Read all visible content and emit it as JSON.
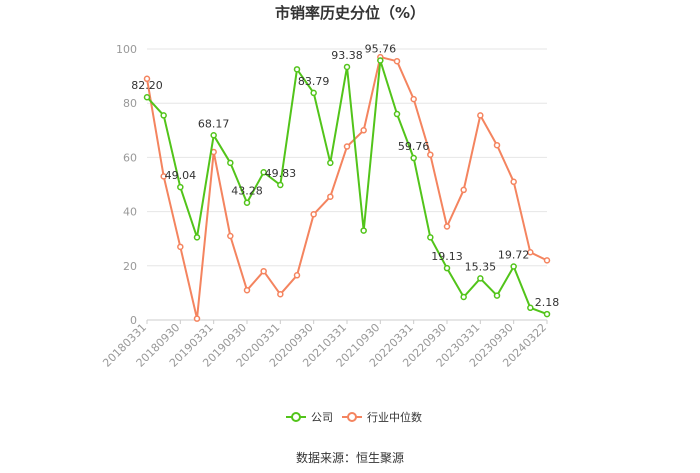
{
  "chart_data": {
    "type": "line",
    "title": "市销率历史分位（%）",
    "x": [
      "20180331",
      "20180630",
      "20180930",
      "20181231",
      "20190331",
      "20190630",
      "20190930",
      "20191231",
      "20200331",
      "20200630",
      "20200930",
      "20201231",
      "20210331",
      "20210630",
      "20210930",
      "20211231",
      "20220331",
      "20220630",
      "20220930",
      "20221231",
      "20230331",
      "20230630",
      "20230930",
      "20231231",
      "20240322"
    ],
    "xtick_labels": [
      "20180331",
      "20180930",
      "20190331",
      "20190930",
      "20200331",
      "20200930",
      "20210331",
      "20210930",
      "20220331",
      "20220930",
      "20230331",
      "20230930",
      "20240322"
    ],
    "ylim": [
      0,
      100
    ],
    "yticks": [
      0,
      20,
      40,
      60,
      80,
      100
    ],
    "grid": true,
    "legend_position": "bottom",
    "series": [
      {
        "name": "公司",
        "color": "#52c41a",
        "values": [
          82.2,
          75.5,
          49.04,
          30.5,
          68.17,
          58.0,
          43.28,
          54.5,
          49.83,
          92.5,
          83.79,
          58.0,
          93.38,
          33.0,
          95.76,
          76.0,
          59.76,
          30.5,
          19.13,
          8.5,
          15.35,
          9.0,
          19.72,
          4.5,
          2.18
        ],
        "data_labels": {
          "0": "82.20",
          "2": "49.04",
          "4": "68.17",
          "6": "43.28",
          "8": "49.83",
          "10": "83.79",
          "12": "93.38",
          "14": "95.76",
          "16": "59.76",
          "18": "19.13",
          "20": "15.35",
          "22": "19.72",
          "24": "2.18"
        }
      },
      {
        "name": "行业中位数",
        "color": "#f4845f",
        "values": [
          89.0,
          53.0,
          27.0,
          0.5,
          62.0,
          31.0,
          11.0,
          18.0,
          9.5,
          16.5,
          39.0,
          45.5,
          64.0,
          70.0,
          97.0,
          95.5,
          81.5,
          61.0,
          34.5,
          48.0,
          75.5,
          64.5,
          51.0,
          25.0,
          22.0
        ]
      }
    ]
  },
  "source_text": "数据来源：恒生聚源"
}
